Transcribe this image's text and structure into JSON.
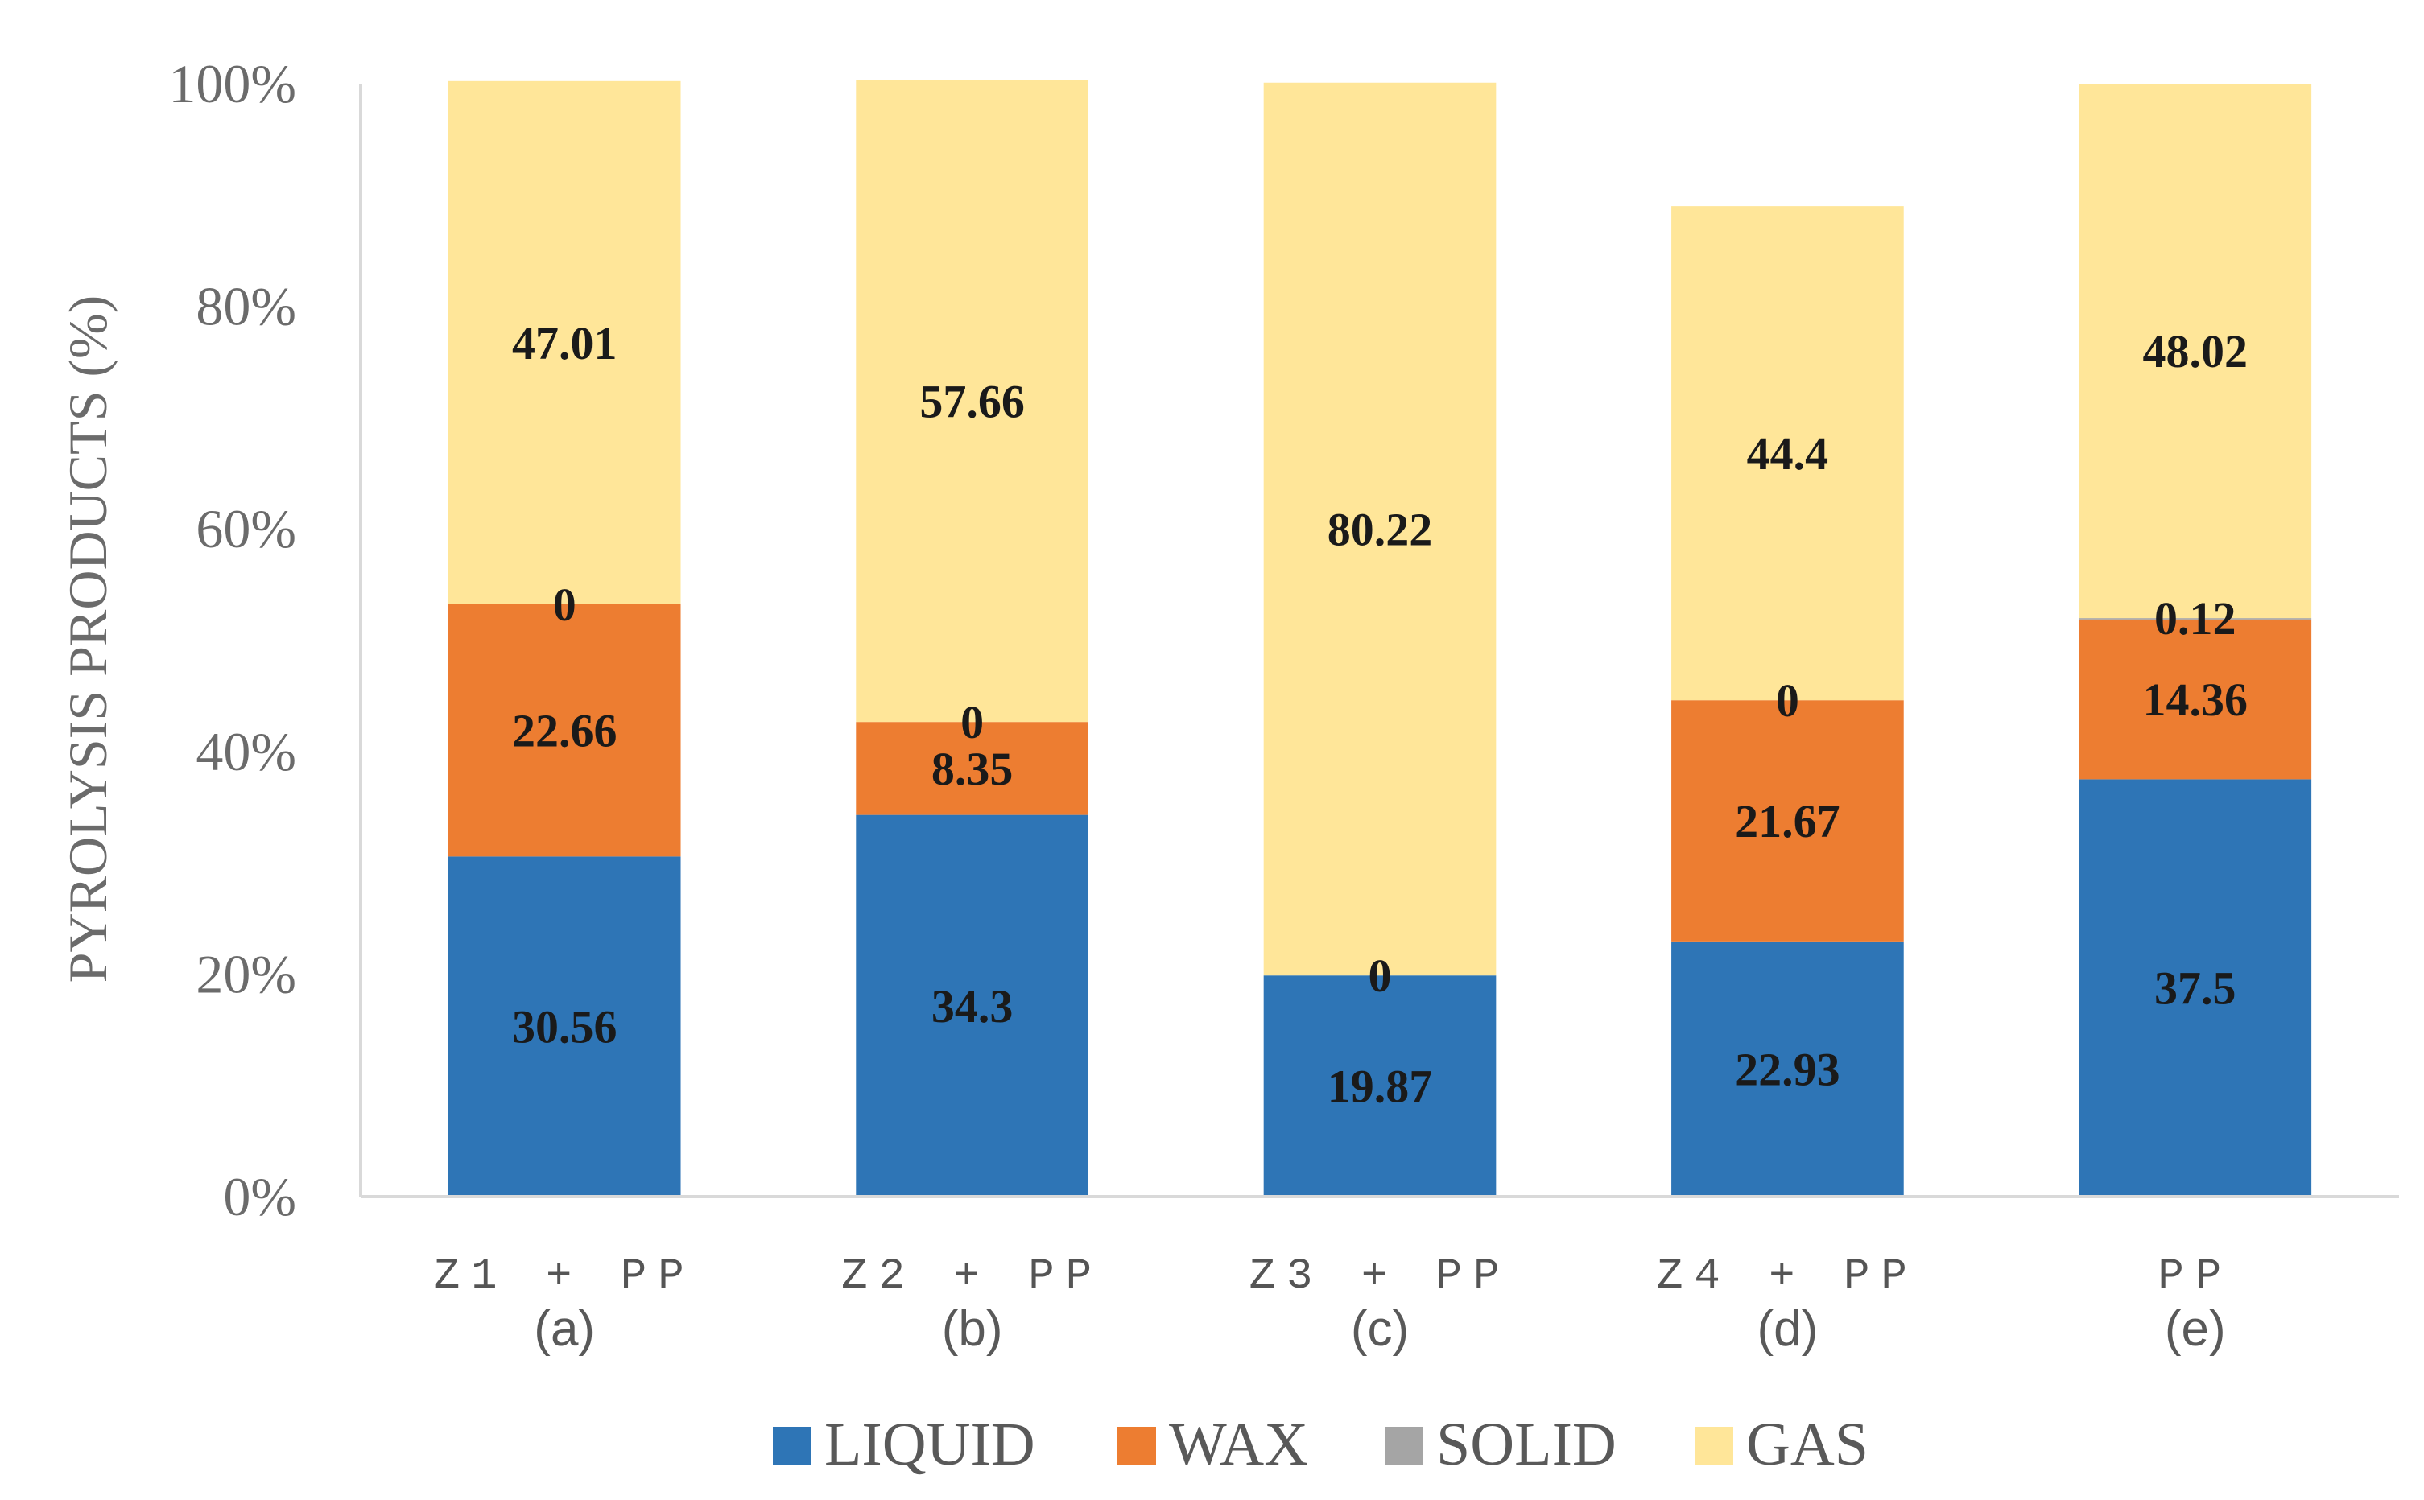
{
  "chart_data": {
    "type": "bar",
    "stacked": true,
    "title": "",
    "xlabel": "",
    "ylabel": "PYROLYSIS PRODUCTS (%)",
    "ylim": [
      0,
      100
    ],
    "y_ticks": [
      "0%",
      "20%",
      "40%",
      "60%",
      "80%",
      "100%"
    ],
    "categories": [
      "Z1 + PP",
      "Z2 + PP",
      "Z3 + PP",
      "Z4 + PP",
      "PP"
    ],
    "category_sublabels": [
      "(a)",
      "(b)",
      "(c)",
      "(d)",
      "(e)"
    ],
    "series": [
      {
        "name": "LIQUID",
        "color": "#2e75b6",
        "values": [
          30.56,
          34.3,
          19.87,
          22.93,
          37.5
        ],
        "labels": [
          "30.56",
          "34.3",
          "19.87",
          "22.93",
          "37.5"
        ]
      },
      {
        "name": "WAX",
        "color": "#ed7d31",
        "values": [
          22.66,
          8.35,
          0,
          21.67,
          14.36
        ],
        "labels": [
          "22.66",
          "8.35",
          "",
          "21.67",
          "14.36"
        ]
      },
      {
        "name": "SOLID",
        "color": "#a5a5a5",
        "values": [
          0,
          0,
          0,
          0,
          0.12
        ],
        "labels": [
          "0",
          "0",
          "0",
          "0",
          "0.12"
        ]
      },
      {
        "name": "GAS",
        "color": "#ffe699",
        "values": [
          47.01,
          57.66,
          80.22,
          44.4,
          48.02
        ],
        "labels": [
          "47.01",
          "57.66",
          "80.22",
          "44.4",
          "48.02"
        ]
      }
    ],
    "grid": false,
    "legend_position": "bottom"
  }
}
